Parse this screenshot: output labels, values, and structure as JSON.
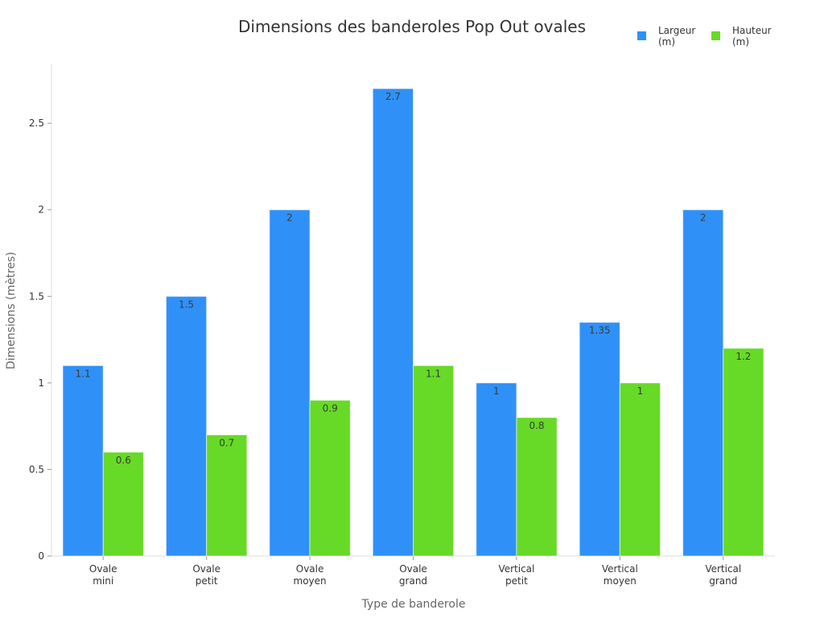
{
  "chart_data": {
    "type": "bar",
    "title": "Dimensions des banderoles Pop Out ovales",
    "xlabel": "Type de banderole",
    "ylabel": "Dimensions (mètres)",
    "categories": [
      [
        "Ovale",
        "mini"
      ],
      [
        "Ovale",
        "petit"
      ],
      [
        "Ovale",
        "moyen"
      ],
      [
        "Ovale",
        "grand"
      ],
      [
        "Vertical",
        "petit"
      ],
      [
        "Vertical",
        "moyen"
      ],
      [
        "Vertical",
        "grand"
      ]
    ],
    "series": [
      {
        "name": "Largeur (m)",
        "color": "#2F91F8",
        "values": [
          1.1,
          1.5,
          2,
          2.7,
          1,
          1.35,
          2
        ]
      },
      {
        "name": "Hauteur (m)",
        "color": "#66DA26",
        "values": [
          0.6,
          0.7,
          0.9,
          1.1,
          0.8,
          1,
          1.2
        ]
      }
    ],
    "yticks": [
      0,
      0.5,
      1,
      1.5,
      2,
      2.5
    ],
    "ylim": [
      0,
      2.84
    ],
    "grid": false,
    "legend": "top-right",
    "data_labels": true
  }
}
